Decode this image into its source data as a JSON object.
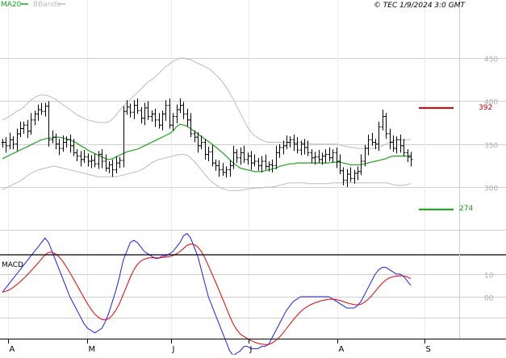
{
  "legend": {
    "ma_label": "MA20",
    "bb_label": "BBands",
    "ma_color": "#1aa31a",
    "bb_color": "#bbbbbb"
  },
  "copyright": "© TEC 1/9/2024 3:0 GMT",
  "price_panel": {
    "y_ticks": [
      450,
      400,
      350,
      300
    ],
    "ylim": [
      240,
      485
    ],
    "resistance": {
      "value": 392,
      "label": "392",
      "color": "#cc0000"
    },
    "support": {
      "value": 274,
      "label": "274",
      "color": "#119911"
    }
  },
  "macd_panel": {
    "label": "MACD",
    "y_ticks": [
      {
        "v": 10,
        "label": "10"
      },
      {
        "v": 0,
        "label": "00"
      }
    ],
    "ylim": [
      -28,
      28
    ],
    "macd_color": "#1a1aff",
    "signal_color": "#e60000"
  },
  "x_labels": [
    "A",
    "M",
    "J",
    "J",
    "A",
    "S"
  ],
  "chart_data": {
    "type": "ohlc",
    "price": {
      "close": [
        352,
        348,
        355,
        350,
        362,
        368,
        372,
        365,
        378,
        385,
        390,
        388,
        394,
        355,
        358,
        350,
        345,
        352,
        355,
        348,
        340,
        336,
        332,
        335,
        330,
        331,
        327,
        338,
        330,
        322,
        326,
        320,
        328,
        331,
        388,
        393,
        387,
        395,
        389,
        380,
        392,
        382,
        385,
        378,
        372,
        385,
        395,
        372,
        382,
        390,
        395,
        385,
        378,
        362,
        358,
        348,
        352,
        338,
        341,
        328,
        325,
        320,
        317,
        320,
        325,
        340,
        334,
        340,
        332,
        336,
        328,
        330,
        325,
        330,
        324,
        326,
        325,
        340,
        346,
        348,
        352,
        355,
        350,
        343,
        350,
        346,
        340,
        334,
        335,
        332,
        336,
        338,
        334,
        340,
        330,
        319,
        308,
        315,
        310,
        316,
        318,
        330,
        345,
        355,
        352,
        350,
        370,
        382,
        362,
        352,
        345,
        355,
        348,
        340,
        335,
        332
      ],
      "ma20": [
        333,
        335,
        337,
        339,
        341,
        343,
        345,
        347,
        349,
        351,
        353,
        355,
        356,
        357,
        357,
        358,
        358,
        357,
        356,
        355,
        353,
        351,
        348,
        346,
        343,
        341,
        339,
        337,
        335,
        333,
        332,
        333,
        335,
        337,
        339,
        341,
        342,
        343,
        344,
        346,
        348,
        350,
        352,
        354,
        356,
        358,
        360,
        362,
        365,
        370,
        373,
        372,
        371,
        368,
        365,
        362,
        359,
        356,
        353,
        350,
        347,
        343,
        340,
        336,
        332,
        328,
        325,
        322,
        321,
        320,
        319,
        318,
        318,
        318,
        319,
        320,
        321,
        322,
        324,
        325,
        326,
        327,
        327,
        328,
        328,
        328,
        328,
        328,
        328,
        328,
        328,
        328,
        328,
        329,
        329,
        329,
        328,
        327,
        326,
        326,
        326,
        326,
        327,
        328,
        329,
        330,
        331,
        332,
        333,
        335,
        336,
        336,
        336,
        336,
        336,
        337
      ],
      "bb_upper": [
        378,
        380,
        382,
        385,
        388,
        390,
        393,
        397,
        401,
        404,
        406,
        407,
        407,
        406,
        404,
        402,
        399,
        396,
        393,
        390,
        387,
        384,
        382,
        380,
        378,
        377,
        376,
        375,
        375,
        375,
        376,
        379,
        384,
        389,
        394,
        398,
        402,
        406,
        410,
        414,
        418,
        422,
        425,
        428,
        432,
        436,
        440,
        443,
        446,
        448,
        450,
        450,
        449,
        448,
        446,
        444,
        442,
        440,
        438,
        435,
        431,
        427,
        422,
        416,
        410,
        402,
        394,
        386,
        378,
        370,
        364,
        360,
        357,
        355,
        353,
        352,
        352,
        352,
        352,
        352,
        352,
        352,
        352,
        352,
        352,
        352,
        351,
        350,
        350,
        350,
        350,
        350,
        350,
        350,
        350,
        349,
        348,
        347,
        346,
        346,
        345,
        345,
        345,
        345,
        345,
        345,
        346,
        348,
        350,
        352,
        354,
        355,
        355,
        355,
        355,
        355
      ],
      "bb_lower": [
        297,
        299,
        301,
        303,
        305,
        307,
        310,
        313,
        316,
        318,
        320,
        321,
        322,
        323,
        324,
        324,
        323,
        322,
        321,
        320,
        319,
        318,
        317,
        316,
        315,
        314,
        313,
        312,
        312,
        312,
        312,
        312,
        312,
        313,
        314,
        315,
        316,
        317,
        318,
        320,
        322,
        325,
        328,
        330,
        332,
        333,
        334,
        335,
        336,
        337,
        338,
        338,
        337,
        334,
        330,
        325,
        320,
        315,
        310,
        306,
        303,
        300,
        298,
        297,
        296,
        296,
        296,
        296,
        297,
        298,
        298,
        299,
        299,
        299,
        300,
        300,
        300,
        301,
        302,
        303,
        304,
        305,
        305,
        305,
        305,
        305,
        304,
        304,
        304,
        304,
        304,
        304,
        304,
        305,
        305,
        305,
        305,
        305,
        305,
        305,
        305,
        305,
        305,
        305,
        305,
        305,
        305,
        305,
        305,
        304,
        303,
        302,
        302,
        302,
        303,
        304
      ]
    },
    "macd": {
      "macd": [
        2,
        4,
        6,
        8,
        10,
        12,
        14,
        16,
        18,
        20,
        22,
        24,
        26,
        24,
        20,
        16,
        12,
        8,
        4,
        0,
        -3,
        -6,
        -9,
        -12,
        -14,
        -15,
        -16,
        -15,
        -14,
        -11,
        -7,
        -2,
        3,
        9,
        16,
        20,
        24,
        25,
        24,
        22,
        20,
        19,
        18,
        17,
        17,
        18,
        18,
        19,
        20,
        22,
        24,
        27,
        28,
        26,
        22,
        18,
        12,
        6,
        0,
        -4,
        -8,
        -12,
        -16,
        -20,
        -24,
        -26,
        -25,
        -24,
        -22,
        -22,
        -23,
        -23,
        -23,
        -22,
        -22,
        -21,
        -18,
        -15,
        -12,
        -9,
        -6,
        -4,
        -2,
        -1,
        0,
        0,
        0,
        0,
        0,
        0,
        0,
        0,
        0,
        -1,
        -2,
        -3,
        -4,
        -5,
        -5,
        -5,
        -4,
        -2,
        1,
        4,
        7,
        10,
        12,
        13,
        13,
        12,
        11,
        10,
        10,
        9,
        7,
        5
      ]
    }
  }
}
